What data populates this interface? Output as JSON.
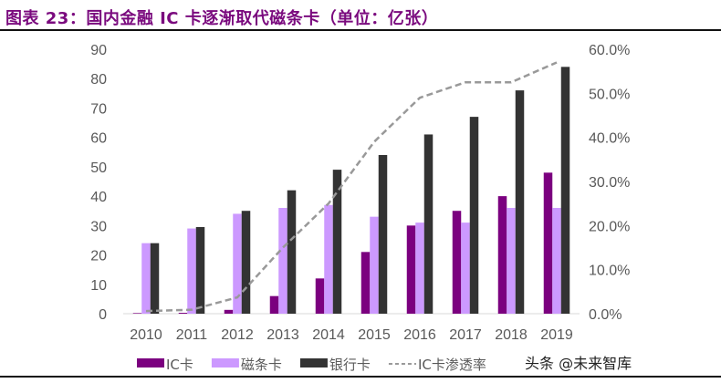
{
  "title": "图表 23：国内金融 IC 卡逐渐取代磁条卡（单位：亿张）",
  "watermark": "头条 @未来智库",
  "chart_data": {
    "type": "bar",
    "title": "图表 23：国内金融 IC 卡逐渐取代磁条卡（单位：亿张）",
    "categories": [
      "2010",
      "2011",
      "2012",
      "2013",
      "2014",
      "2015",
      "2016",
      "2017",
      "2018",
      "2019"
    ],
    "series": [
      {
        "name": "IC卡",
        "type": "bar",
        "axis": "left",
        "color": "#7b007f",
        "values": [
          0.2,
          0.3,
          1.3,
          6,
          12,
          21,
          30,
          35,
          40,
          48
        ]
      },
      {
        "name": "磁条卡",
        "type": "bar",
        "axis": "left",
        "color": "#cc99ff",
        "values": [
          24,
          29,
          34,
          36,
          37,
          33,
          31,
          31,
          36,
          36
        ]
      },
      {
        "name": "银行卡",
        "type": "bar",
        "axis": "left",
        "color": "#333333",
        "values": [
          24,
          29.5,
          35,
          42,
          49,
          54,
          61,
          67,
          76,
          84
        ]
      },
      {
        "name": "IC卡渗透率",
        "type": "line",
        "style": "dashed",
        "axis": "right",
        "color": "#999999",
        "values": [
          0.6,
          0.9,
          3.7,
          15,
          25,
          39,
          49,
          52.5,
          52.5,
          57
        ]
      }
    ],
    "ylim": [
      0,
      90
    ],
    "yticks": [
      "0",
      "10",
      "20",
      "30",
      "40",
      "50",
      "60",
      "70",
      "80",
      "90"
    ],
    "y2lim": [
      0,
      60
    ],
    "y2ticks": [
      "0.0%",
      "10.0%",
      "20.0%",
      "30.0%",
      "40.0%",
      "50.0%",
      "60.0%"
    ],
    "grid": false,
    "legend": "bottom"
  }
}
